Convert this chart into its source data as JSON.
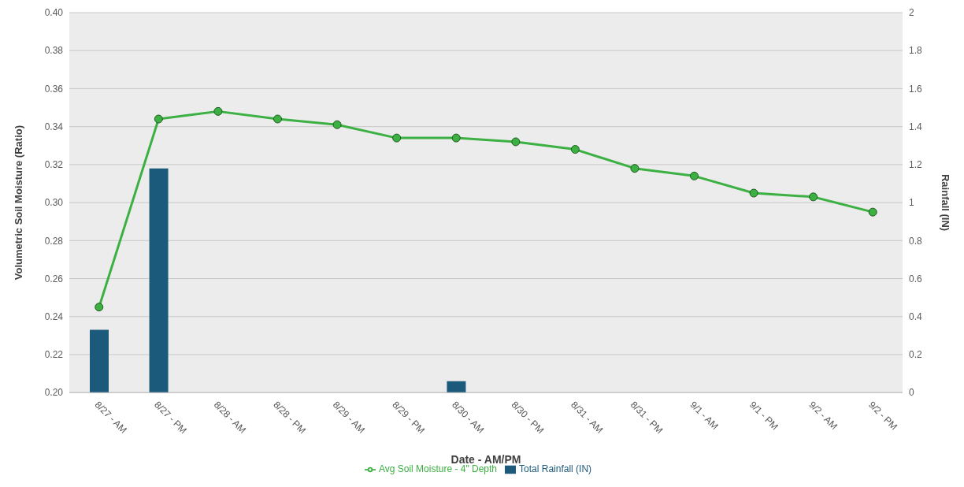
{
  "chart_data": {
    "type": "bar",
    "xlabel": "Date - AM/PM",
    "ylabel": "Volumetric Soil Moisture (Ratio)",
    "y2label": "Rainfall (IN)",
    "categories": [
      "8/27 - AM",
      "8/27 - PM",
      "8/28 - AM",
      "8/28 - PM",
      "8/29 - AM",
      "8/29 - PM",
      "8/30 - AM",
      "8/30 - PM",
      "8/31 - AM",
      "8/31 - PM",
      "9/1 - AM",
      "9/1 - PM",
      "9/2 - AM",
      "9/2 - PM"
    ],
    "series": [
      {
        "name": "Total Rainfall (IN)",
        "axis": "y2",
        "color": "#1b5a7a",
        "values": [
          0.33,
          1.18,
          0,
          0,
          0,
          0,
          0.06,
          0,
          0,
          0,
          0,
          0,
          0,
          0
        ]
      },
      {
        "name": "Avg Soil Moisture - 4\" Depth",
        "type": "line",
        "color": "#3cb043",
        "marker": "circle",
        "values": [
          0.245,
          0.344,
          0.348,
          0.344,
          0.341,
          0.334,
          0.334,
          0.332,
          0.328,
          0.318,
          0.314,
          0.305,
          0.303,
          0.295
        ]
      }
    ],
    "ylim": [
      0.2,
      0.4
    ],
    "yticks": [
      {
        "value": 0.2,
        "label": "0.20"
      },
      {
        "value": 0.22,
        "label": "0.22"
      },
      {
        "value": 0.24,
        "label": "0.24"
      },
      {
        "value": 0.26,
        "label": "0.26"
      },
      {
        "value": 0.28,
        "label": "0.28"
      },
      {
        "value": 0.3,
        "label": "0.30"
      },
      {
        "value": 0.32,
        "label": "0.32"
      },
      {
        "value": 0.34,
        "label": "0.34"
      },
      {
        "value": 0.36,
        "label": "0.36"
      },
      {
        "value": 0.38,
        "label": "0.38"
      },
      {
        "value": 0.4,
        "label": "0.40"
      }
    ],
    "y2lim": [
      0,
      2
    ],
    "y2ticks": [
      0,
      0.2,
      0.4,
      0.6,
      0.8,
      1,
      1.2,
      1.4,
      1.6,
      1.8,
      2
    ],
    "grid": "y",
    "legend": "bottom"
  }
}
